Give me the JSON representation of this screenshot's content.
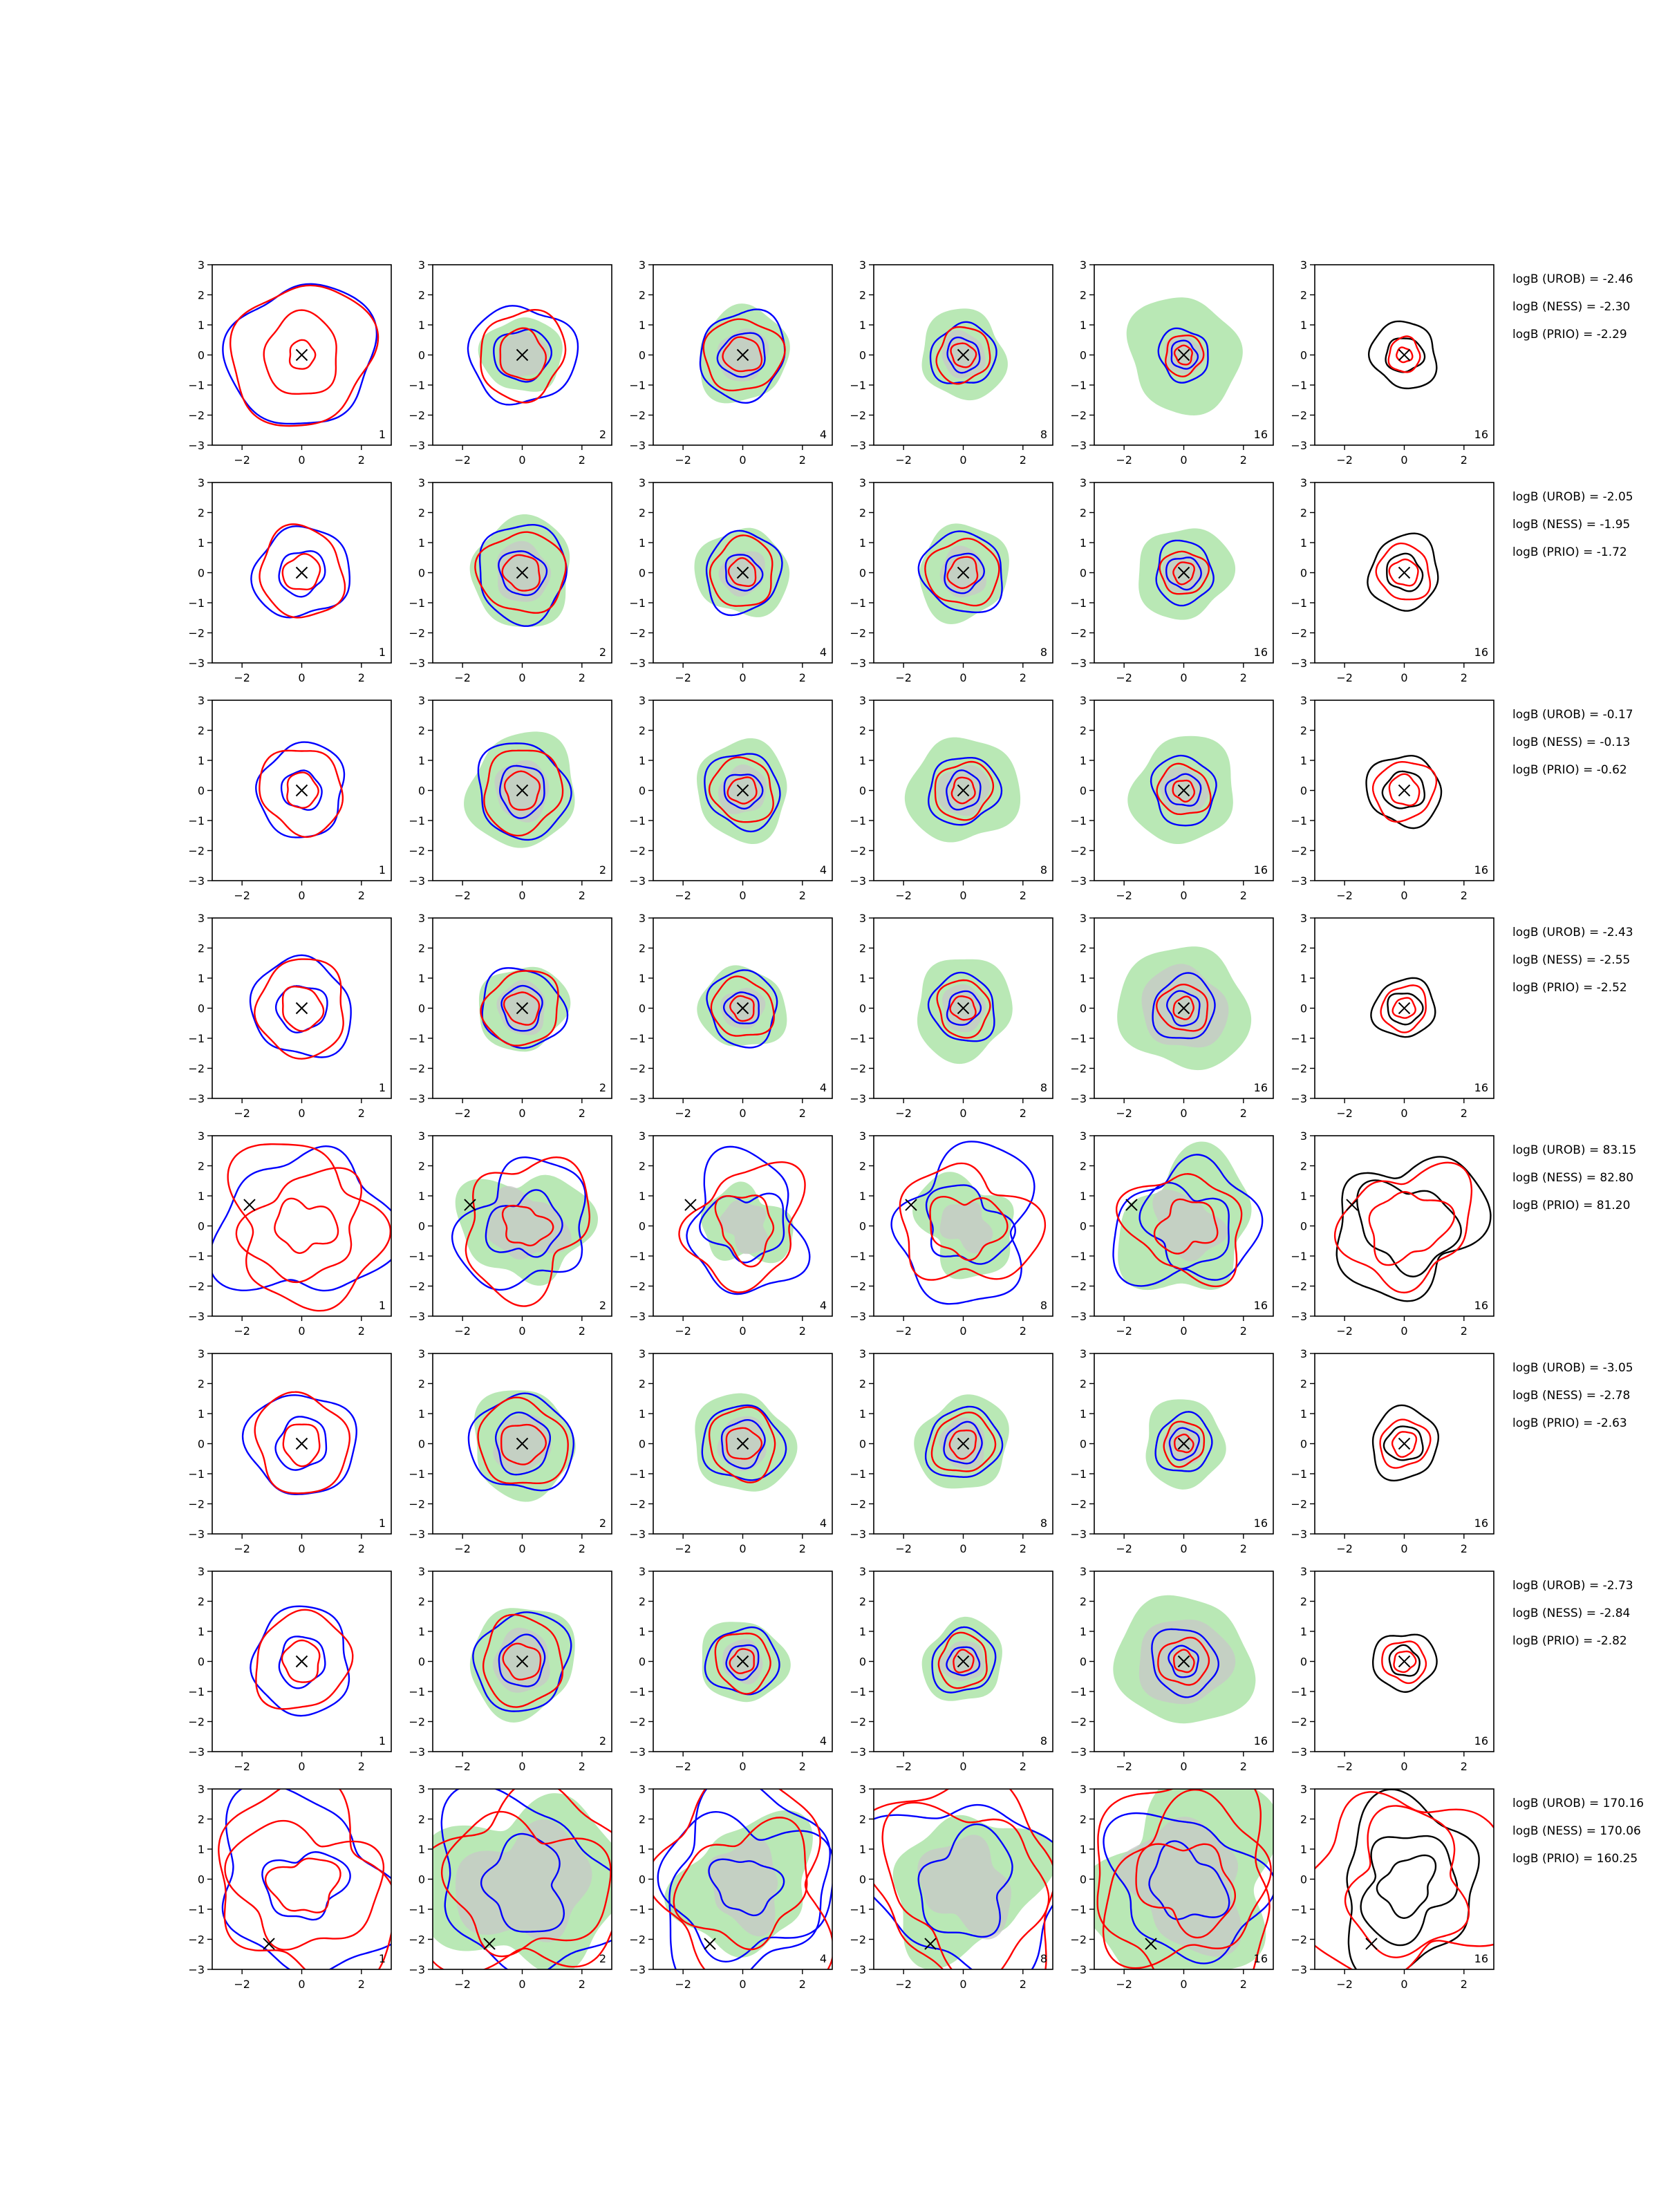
{
  "figure": {
    "type": "contour-grid",
    "rows": 8,
    "cols": 6
  },
  "chart_data": {
    "type": "contour",
    "xlim": [
      -3,
      3
    ],
    "ylim": [
      -3,
      3
    ],
    "xticks": [
      "−2",
      "0",
      "2"
    ],
    "yticks": [
      "3",
      "2",
      "1",
      "0",
      "−1",
      "−2",
      "−3"
    ],
    "panel_labels": [
      "1",
      "2",
      "4",
      "8",
      "16",
      "16"
    ],
    "colors": {
      "contour_blue": "#0000ff",
      "contour_red": "#ff0000",
      "contour_black": "#000000",
      "fill_green": "#b9e8b5",
      "fill_gray": "#c8c8c8"
    },
    "rows": [
      {
        "logB": {
          "UROB": "logB (UROB) = -2.46",
          "NESS": "logB (NESS) = -2.30",
          "PRIO": "logB (PRIO) = -2.29"
        },
        "marker": [
          0,
          0
        ],
        "red_r": [
          1.3,
          2.35,
          0.45
        ],
        "blue_r": [
          2.4
        ],
        "prior_r": [
          0.6,
          1.1
        ],
        "panels": [
          {
            "green": 0,
            "gray": 0,
            "blue": [
              2.4
            ],
            "red": [
              2.35,
              1.3,
              0.45
            ]
          },
          {
            "green": 1.3,
            "gray": 0.8,
            "blue": [
              1.7,
              0.9
            ],
            "red": [
              1.45,
              0.8
            ]
          },
          {
            "green": 1.55,
            "gray": 0.85,
            "blue": [
              1.45,
              0.75
            ],
            "red": [
              1.25,
              0.6
            ]
          },
          {
            "green": 1.45,
            "gray": 0.75,
            "blue": [
              1.05,
              0.55
            ],
            "red": [
              0.9,
              0.4
            ]
          },
          {
            "green": 1.9,
            "gray": 0.65,
            "blue": [
              0.85,
              0.45
            ],
            "red": [
              0.65,
              0.3
            ]
          },
          {
            "green": 0,
            "gray": 0,
            "black": [
              1.1,
              0.6
            ],
            "red": [
              0.55,
              0.25
            ]
          }
        ]
      },
      {
        "logB": {
          "UROB": "logB (UROB) = -2.05",
          "NESS": "logB (NESS) = -1.95",
          "PRIO": "logB (PRIO) = -1.72"
        },
        "panels": [
          {
            "green": 0,
            "gray": 0,
            "blue": [
              1.55,
              0.75
            ],
            "red": [
              1.45,
              0.6
            ]
          },
          {
            "green": 1.75,
            "gray": 0.95,
            "blue": [
              1.55,
              0.75
            ],
            "red": [
              1.4,
              0.6
            ]
          },
          {
            "green": 1.5,
            "gray": 0.75,
            "blue": [
              1.3,
              0.6
            ],
            "red": [
              1.1,
              0.45
            ]
          },
          {
            "green": 1.55,
            "gray": 0.8,
            "blue": [
              1.35,
              0.65
            ],
            "red": [
              1.15,
              0.5
            ]
          },
          {
            "green": 1.55,
            "gray": 0.7,
            "blue": [
              1.0,
              0.55
            ],
            "red": [
              0.75,
              0.35
            ]
          },
          {
            "green": 0,
            "gray": 0,
            "black": [
              1.2,
              0.6
            ],
            "red": [
              0.9,
              0.45
            ]
          }
        ]
      },
      {
        "logB": {
          "UROB": "logB (UROB) = -0.17",
          "NESS": "logB (NESS) = -0.13",
          "PRIO": "logB (PRIO) = -0.62"
        },
        "panels": [
          {
            "green": 0,
            "gray": 0,
            "blue": [
              1.5,
              0.65
            ],
            "red": [
              1.4,
              0.55
            ]
          },
          {
            "green": 1.85,
            "gray": 0.95,
            "blue": [
              1.55,
              0.8
            ],
            "red": [
              1.35,
              0.6
            ]
          },
          {
            "green": 1.6,
            "gray": 0.8,
            "blue": [
              1.25,
              0.6
            ],
            "red": [
              1.05,
              0.45
            ]
          },
          {
            "green": 1.8,
            "gray": 0.85,
            "blue": [
              1.15,
              0.6
            ],
            "red": [
              0.95,
              0.4
            ]
          },
          {
            "green": 1.75,
            "gray": 0.8,
            "blue": [
              1.1,
              0.55
            ],
            "red": [
              0.85,
              0.35
            ]
          },
          {
            "green": 0,
            "gray": 0,
            "black": [
              1.2,
              0.65
            ],
            "red": [
              1.0,
              0.5
            ]
          }
        ]
      },
      {
        "logB": {
          "UROB": "logB (UROB) = -2.43",
          "NESS": "logB (NESS) = -2.55",
          "PRIO": "logB (PRIO) = -2.52"
        },
        "panels": [
          {
            "green": 0,
            "gray": 0,
            "blue": [
              1.65,
              0.8
            ],
            "red": [
              1.55,
              0.7
            ]
          },
          {
            "green": 1.45,
            "gray": 0.85,
            "blue": [
              1.35,
              0.7
            ],
            "red": [
              1.25,
              0.55
            ]
          },
          {
            "green": 1.4,
            "gray": 0.7,
            "blue": [
              1.2,
              0.55
            ],
            "red": [
              1.0,
              0.4
            ]
          },
          {
            "green": 1.65,
            "gray": 0.75,
            "blue": [
              1.1,
              0.55
            ],
            "red": [
              0.9,
              0.4
            ]
          },
          {
            "green": 2.1,
            "gray": 1.4,
            "blue": [
              1.05,
              0.55
            ],
            "red": [
              0.8,
              0.35
            ]
          },
          {
            "green": 0,
            "gray": 0,
            "black": [
              1.0,
              0.55
            ],
            "red": [
              0.75,
              0.35
            ]
          }
        ]
      },
      {
        "logB": {
          "UROB": "logB (UROB) = 83.15",
          "NESS": "logB (NESS) = 82.80",
          "PRIO": "logB (PRIO) = 81.20"
        },
        "panels": [
          {
            "green": 0,
            "gray": 0,
            "blue": [
              2.6
            ],
            "red": [
              2.5,
              1.8,
              0.9
            ]
          },
          {
            "green": 1.95,
            "gray": 1.2,
            "blue": [
              2.05,
              1.1
            ],
            "red": [
              2.1,
              0.7
            ]
          },
          {
            "green": 1.35,
            "gray": 0.8,
            "blue": [
              2.05,
              1.2
            ],
            "red": [
              1.9,
              1.0
            ]
          },
          {
            "green": 1.6,
            "gray": 0.8,
            "blue": [
              2.35,
              1.3
            ],
            "red": [
              2.05,
              1.1
            ]
          },
          {
            "green": 2.2,
            "gray": 1.1,
            "blue": [
              2.15,
              1.35
            ],
            "red": [
              1.8,
              0.9
            ]
          },
          {
            "green": 0,
            "gray": 0,
            "black": [
              2.3,
              1.5
            ],
            "red": [
              2.0,
              1.2
            ]
          }
        ]
      },
      {
        "logB": {
          "UROB": "logB (UROB) = -3.05",
          "NESS": "logB (NESS) = -2.78",
          "PRIO": "logB (PRIO) = -2.63"
        },
        "panels": [
          {
            "green": 0,
            "gray": 0,
            "blue": [
              1.75,
              0.85
            ],
            "red": [
              1.6,
              0.65
            ]
          },
          {
            "green": 1.75,
            "gray": 0.95,
            "blue": [
              1.65,
              0.95
            ],
            "red": [
              1.45,
              0.7
            ]
          },
          {
            "green": 1.65,
            "gray": 0.85,
            "blue": [
              1.3,
              0.75
            ],
            "red": [
              1.15,
              0.55
            ]
          },
          {
            "green": 1.55,
            "gray": 0.8,
            "blue": [
              1.2,
              0.65
            ],
            "red": [
              1.0,
              0.45
            ]
          },
          {
            "green": 1.4,
            "gray": 0.65,
            "blue": [
              0.95,
              0.5
            ],
            "red": [
              0.7,
              0.3
            ]
          },
          {
            "green": 0,
            "gray": 0,
            "black": [
              1.15,
              0.6
            ],
            "red": [
              0.8,
              0.4
            ]
          }
        ]
      },
      {
        "logB": {
          "UROB": "logB (UROB) = -2.73",
          "NESS": "logB (NESS) = -2.84",
          "PRIO": "logB (PRIO) = -2.82"
        },
        "panels": [
          {
            "green": 0,
            "gray": 0,
            "blue": [
              1.7,
              0.8
            ],
            "red": [
              1.6,
              0.65
            ]
          },
          {
            "green": 1.8,
            "gray": 1.0,
            "blue": [
              1.6,
              0.8
            ],
            "red": [
              1.4,
              0.6
            ]
          },
          {
            "green": 1.4,
            "gray": 0.7,
            "blue": [
              1.15,
              0.55
            ],
            "red": [
              0.95,
              0.4
            ]
          },
          {
            "green": 1.35,
            "gray": 0.7,
            "blue": [
              1.05,
              0.5
            ],
            "red": [
              0.85,
              0.35
            ]
          },
          {
            "green": 2.2,
            "gray": 1.5,
            "blue": [
              1.1,
              0.5
            ],
            "red": [
              0.8,
              0.35
            ]
          },
          {
            "green": 0,
            "gray": 0,
            "black": [
              1.0,
              0.5
            ],
            "red": [
              0.7,
              0.35
            ]
          }
        ]
      },
      {
        "logB": {
          "UROB": "logB (UROB) = 170.16",
          "NESS": "logB (NESS) = 170.06",
          "PRIO": "logB (PRIO) = 160.25"
        },
        "marker": [
          -1.1,
          -2.15
        ],
        "panels": [
          {
            "green": 0,
            "gray": 0,
            "blue": [
              2.9,
              1.2
            ],
            "red": [
              3.0,
              2.2,
              1.0
            ]
          },
          {
            "green": 3.0,
            "gray": 2.0,
            "blue": [
              2.9,
              1.4
            ],
            "red": [
              3.2,
              2.4
            ]
          },
          {
            "green": 2.2,
            "gray": 1.3,
            "blue": [
              2.9,
              2.5,
              1.0
            ],
            "red": [
              3.1,
              2.0
            ]
          },
          {
            "green": 2.4,
            "gray": 1.5,
            "blue": [
              3.0,
              1.6
            ],
            "red": [
              3.3,
              2.6
            ]
          },
          {
            "green": 3.2,
            "gray": 2.0,
            "blue": [
              2.4,
              1.2
            ],
            "red": [
              3.3,
              2.6,
              1.5
            ]
          },
          {
            "green": 0,
            "gray": 0,
            "black": [
              2.5,
              1.6,
              0.9
            ],
            "red": [
              3.2,
              2.1
            ]
          }
        ]
      }
    ]
  }
}
